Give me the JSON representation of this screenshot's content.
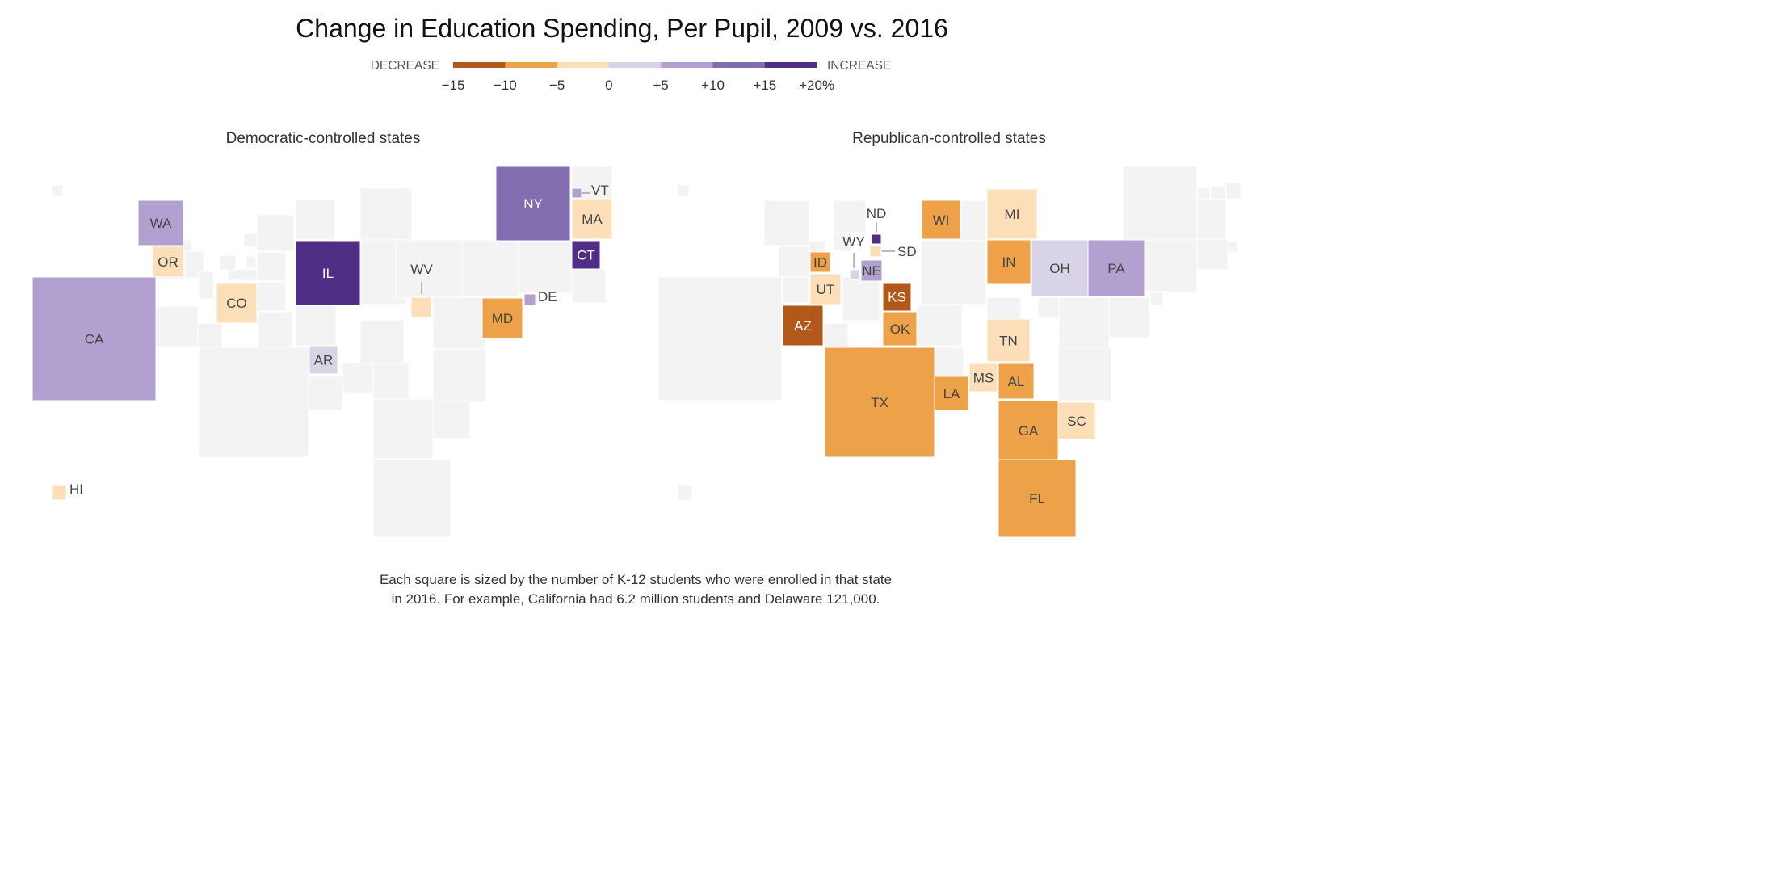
{
  "chart_data": {
    "type": "cartogram",
    "title": "Change in Education Spending, Per Pupil, 2009 vs. 2016",
    "legend": {
      "left_label": "DECREASE",
      "right_label": "INCREASE",
      "ticks": [
        "−15",
        "−10",
        "−5",
        "0",
        "+5",
        "+10",
        "+15",
        "+20%"
      ],
      "bins": [
        {
          "range": [
            -15,
            -10
          ],
          "color": "#b3581b"
        },
        {
          "range": [
            -10,
            -5
          ],
          "color": "#eda249"
        },
        {
          "range": [
            -5,
            0
          ],
          "color": "#fcdfb8"
        },
        {
          "range": [
            0,
            5
          ],
          "color": "#d9d3e8"
        },
        {
          "range": [
            5,
            10
          ],
          "color": "#b1a0d0"
        },
        {
          "range": [
            10,
            15
          ],
          "color": "#826db0"
        },
        {
          "range": [
            15,
            20
          ],
          "color": "#512e85"
        }
      ]
    },
    "empty_color": "#f3f3f3",
    "panels": [
      {
        "title": "Democratic-controlled states",
        "states": [
          {
            "abbr": "WA",
            "change_bin": [
              5,
              10
            ]
          },
          {
            "abbr": "OR",
            "change_bin": [
              -5,
              0
            ]
          },
          {
            "abbr": "CA",
            "change_bin": [
              5,
              10
            ]
          },
          {
            "abbr": "CO",
            "change_bin": [
              -5,
              0
            ]
          },
          {
            "abbr": "IL",
            "change_bin": [
              15,
              20
            ]
          },
          {
            "abbr": "AR",
            "change_bin": [
              0,
              5
            ]
          },
          {
            "abbr": "WV",
            "change_bin": [
              -5,
              0
            ]
          },
          {
            "abbr": "MD",
            "change_bin": [
              -10,
              -5
            ]
          },
          {
            "abbr": "DE",
            "change_bin": [
              5,
              10
            ]
          },
          {
            "abbr": "NY",
            "change_bin": [
              10,
              15
            ]
          },
          {
            "abbr": "VT",
            "change_bin": [
              5,
              10
            ]
          },
          {
            "abbr": "MA",
            "change_bin": [
              -5,
              0
            ]
          },
          {
            "abbr": "CT",
            "change_bin": [
              15,
              20
            ]
          },
          {
            "abbr": "HI",
            "change_bin": [
              -5,
              0
            ]
          }
        ]
      },
      {
        "title": "Republican-controlled states",
        "states": [
          {
            "abbr": "ID",
            "change_bin": [
              -10,
              -5
            ]
          },
          {
            "abbr": "UT",
            "change_bin": [
              -5,
              0
            ]
          },
          {
            "abbr": "AZ",
            "change_bin": [
              -15,
              -10
            ]
          },
          {
            "abbr": "WY",
            "change_bin": [
              0,
              5
            ]
          },
          {
            "abbr": "NE",
            "change_bin": [
              5,
              10
            ]
          },
          {
            "abbr": "ND",
            "change_bin": [
              15,
              20
            ]
          },
          {
            "abbr": "SD",
            "change_bin": [
              -5,
              0
            ]
          },
          {
            "abbr": "KS",
            "change_bin": [
              -15,
              -10
            ]
          },
          {
            "abbr": "OK",
            "change_bin": [
              -10,
              -5
            ]
          },
          {
            "abbr": "TX",
            "change_bin": [
              -10,
              -5
            ]
          },
          {
            "abbr": "WI",
            "change_bin": [
              -10,
              -5
            ]
          },
          {
            "abbr": "MI",
            "change_bin": [
              -5,
              0
            ]
          },
          {
            "abbr": "IN",
            "change_bin": [
              -10,
              -5
            ]
          },
          {
            "abbr": "OH",
            "change_bin": [
              0,
              5
            ]
          },
          {
            "abbr": "PA",
            "change_bin": [
              5,
              10
            ]
          },
          {
            "abbr": "TN",
            "change_bin": [
              -5,
              0
            ]
          },
          {
            "abbr": "LA",
            "change_bin": [
              -10,
              -5
            ]
          },
          {
            "abbr": "MS",
            "change_bin": [
              -5,
              0
            ]
          },
          {
            "abbr": "AL",
            "change_bin": [
              -10,
              -5
            ]
          },
          {
            "abbr": "GA",
            "change_bin": [
              -10,
              -5
            ]
          },
          {
            "abbr": "SC",
            "change_bin": [
              -5,
              0
            ]
          },
          {
            "abbr": "FL",
            "change_bin": [
              -10,
              -5
            ]
          }
        ]
      }
    ],
    "note": [
      "Each square is sized by the number of K-12 students who were enrolled in that state",
      "in 2016. For example, California had 6.2 million students and Delaware 121,000."
    ]
  }
}
